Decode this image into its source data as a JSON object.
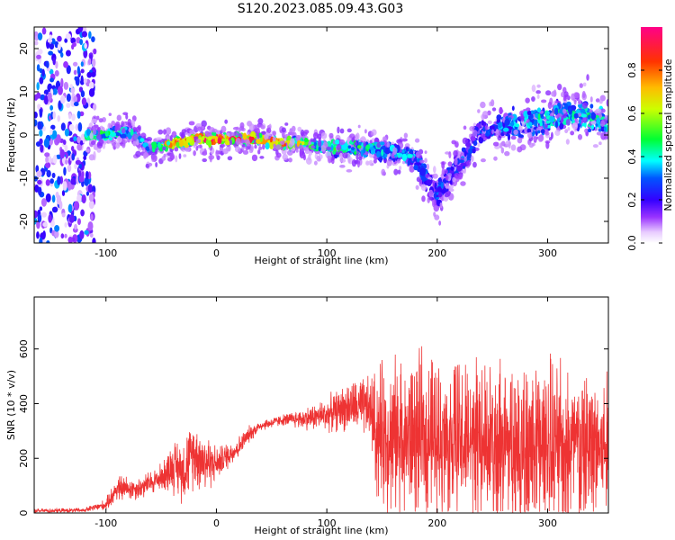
{
  "title": "S120.2023.085.09.43.G03",
  "chart_data": [
    {
      "type": "heatmap",
      "title": "S120.2023.085.09.43.G03",
      "xlabel": "Height of straight line (km)",
      "ylabel": "Frequency (Hz)",
      "xlim": [
        -165,
        355
      ],
      "ylim": [
        -25,
        25
      ],
      "x_ticks": [
        -100,
        0,
        100,
        200,
        300
      ],
      "y_ticks": [
        -20,
        -10,
        0,
        10,
        20
      ],
      "colorbar": {
        "label": "Normalized spectral amplitude",
        "range": [
          0,
          1
        ],
        "ticks": [
          "0.0",
          "0.2",
          "0.4",
          "0.6",
          "0.8"
        ],
        "tick_values": [
          0.0,
          0.2,
          0.4,
          0.6,
          0.8
        ],
        "colors": [
          "#ffffff",
          "#cc99ff",
          "#6600ff",
          "#0000ff",
          "#00ffff",
          "#00ff00",
          "#ffff00",
          "#ff8800",
          "#ff0000",
          "#ff0088"
        ]
      },
      "ridge": {
        "x": [
          -115,
          -100,
          -80,
          -60,
          -40,
          -20,
          0,
          20,
          40,
          60,
          80,
          100,
          120,
          140,
          160,
          180,
          190,
          200,
          210,
          220,
          240,
          260,
          280,
          300,
          320,
          340,
          355
        ],
        "center": [
          0,
          0,
          1,
          -3,
          -2,
          -1,
          -1,
          -1,
          -1,
          -2,
          -2,
          -3,
          -3,
          -3,
          -4,
          -5,
          -10,
          -14,
          -10,
          -7,
          1,
          2,
          3,
          4,
          5,
          4,
          3
        ],
        "peak": [
          0.5,
          0.5,
          0.4,
          0.4,
          0.8,
          0.9,
          1.0,
          0.9,
          0.8,
          0.85,
          0.6,
          0.5,
          0.5,
          0.45,
          0.4,
          0.35,
          0.3,
          0.3,
          0.3,
          0.3,
          0.3,
          0.35,
          0.4,
          0.45,
          0.45,
          0.45,
          0.45
        ]
      },
      "noise_region": {
        "x_range": [
          -165,
          -110
        ],
        "amplitude": 0.35
      }
    },
    {
      "type": "line",
      "xlabel": "Height of straight line (km)",
      "ylabel": "SNR (10 * v/v)",
      "xlim": [
        -165,
        355
      ],
      "ylim": [
        0,
        790
      ],
      "x_ticks": [
        -100,
        0,
        100,
        200,
        300
      ],
      "y_ticks": [
        0,
        200,
        400,
        600
      ],
      "color": "#ee3333",
      "envelope": {
        "x": [
          -165,
          -120,
          -100,
          -90,
          -70,
          -50,
          -40,
          -30,
          -20,
          -10,
          0,
          10,
          20,
          30,
          40,
          60,
          80,
          100,
          120,
          140,
          145,
          160,
          180,
          200,
          220,
          240,
          260,
          280,
          300,
          320,
          340,
          355
        ],
        "mean": [
          8,
          10,
          30,
          90,
          90,
          130,
          170,
          160,
          220,
          190,
          180,
          210,
          240,
          290,
          320,
          340,
          345,
          360,
          390,
          380,
          290,
          280,
          280,
          270,
          260,
          250,
          245,
          240,
          240,
          235,
          240,
          240
        ],
        "spread": [
          8,
          8,
          20,
          50,
          40,
          50,
          90,
          120,
          120,
          120,
          60,
          50,
          40,
          30,
          20,
          20,
          40,
          60,
          90,
          120,
          250,
          280,
          290,
          290,
          290,
          300,
          310,
          320,
          320,
          300,
          280,
          270
        ]
      }
    }
  ]
}
